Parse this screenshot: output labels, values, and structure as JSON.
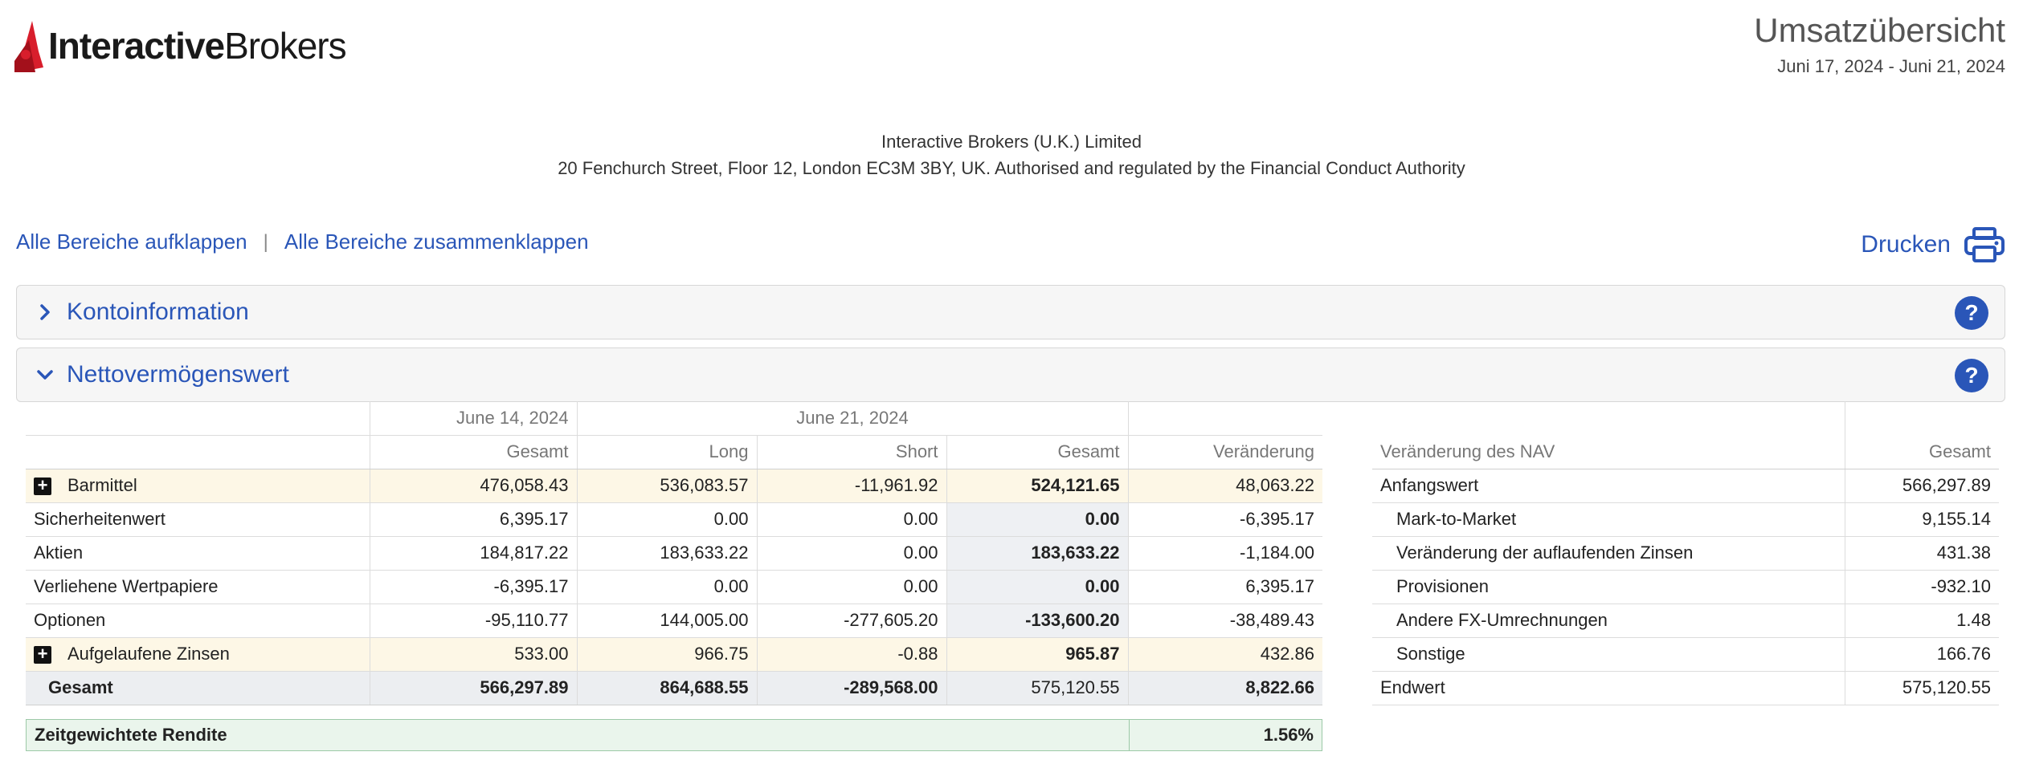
{
  "header": {
    "logo_bold": "Interactive",
    "logo_regular": "Brokers",
    "title": "Umsatzübersicht",
    "date_range": "Juni 17, 2024 - Juni 21, 2024"
  },
  "company": {
    "name": "Interactive Brokers (U.K.) Limited",
    "address": "20 Fenchurch Street, Floor 12, London EC3M 3BY, UK. Authorised and regulated by the Financial Conduct Authority"
  },
  "links": {
    "expand_all": "Alle Bereiche aufklappen",
    "separator": "|",
    "collapse_all": "Alle Bereiche zusammenklappen",
    "print": "Drucken"
  },
  "sections": {
    "account_info": "Kontoinformation",
    "nav": "Nettovermögenswert",
    "help_symbol": "?"
  },
  "nav_table": {
    "date_prev": "June 14, 2024",
    "date_curr": "June 21, 2024",
    "columns": [
      "",
      "Gesamt",
      "Long",
      "Short",
      "Gesamt",
      "Veränderung"
    ],
    "rows": [
      {
        "label": "Barmittel",
        "expand": true,
        "prev_total": "476,058.43",
        "long": "536,083.57",
        "short": "-11,961.92",
        "total": "524,121.65",
        "change": "48,063.22"
      },
      {
        "label": "Sicherheitenwert",
        "expand": false,
        "prev_total": "6,395.17",
        "long": "0.00",
        "short": "0.00",
        "total": "0.00",
        "change": "-6,395.17"
      },
      {
        "label": "Aktien",
        "expand": false,
        "prev_total": "184,817.22",
        "long": "183,633.22",
        "short": "0.00",
        "total": "183,633.22",
        "change": "-1,184.00"
      },
      {
        "label": "Verliehene Wertpapiere",
        "expand": false,
        "prev_total": "-6,395.17",
        "long": "0.00",
        "short": "0.00",
        "total": "0.00",
        "change": "6,395.17"
      },
      {
        "label": "Optionen",
        "expand": false,
        "prev_total": "-95,110.77",
        "long": "144,005.00",
        "short": "-277,605.20",
        "total": "-133,600.20",
        "change": "-38,489.43"
      },
      {
        "label": "Aufgelaufene Zinsen",
        "expand": true,
        "prev_total": "533.00",
        "long": "966.75",
        "short": "-0.88",
        "total": "965.87",
        "change": "432.86"
      }
    ],
    "total": {
      "label": "Gesamt",
      "prev_total": "566,297.89",
      "long": "864,688.55",
      "short": "-289,568.00",
      "total": "575,120.55",
      "change": "8,822.66"
    },
    "twr_label": "Zeitgewichtete Rendite",
    "twr_value": "1.56%"
  },
  "change_table": {
    "columns": [
      "Veränderung des NAV",
      "Gesamt"
    ],
    "rows": [
      {
        "label": "Anfangswert",
        "value": "566,297.89",
        "sub": false
      },
      {
        "label": "Mark-to-Market",
        "value": "9,155.14",
        "sub": true
      },
      {
        "label": "Veränderung der auflaufenden Zinsen",
        "value": "431.38",
        "sub": true
      },
      {
        "label": "Provisionen",
        "value": "-932.10",
        "sub": true
      },
      {
        "label": "Andere FX-Umrechnungen",
        "value": "1.48",
        "sub": true
      },
      {
        "label": "Sonstige",
        "value": "166.76",
        "sub": true
      },
      {
        "label": "Endwert",
        "value": "575,120.55",
        "sub": false
      }
    ]
  },
  "colors": {
    "link": "#2a56b8",
    "logo_red": "#d81e2c",
    "highlight_row": "#fdf7e6",
    "twr_bg": "#eaf5ec"
  }
}
